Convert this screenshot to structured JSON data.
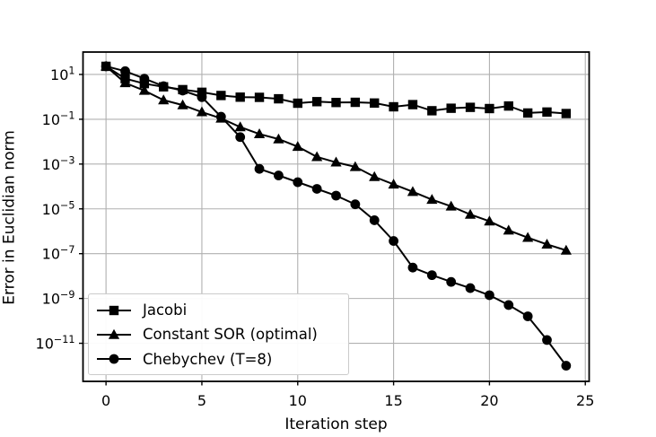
{
  "chart_data": {
    "type": "line",
    "title": "",
    "xlabel": "Iteration step",
    "ylabel": "Error in Euclidian norm",
    "x_scale": "linear",
    "y_scale": "log",
    "xlim": [
      -1.2,
      25.2
    ],
    "ylim_log10": [
      -12.7,
      2
    ],
    "xticks": [
      0,
      5,
      10,
      15,
      20,
      25
    ],
    "ytick_exponents": [
      1,
      -1,
      -3,
      -5,
      -7,
      -9,
      -11
    ],
    "grid": true,
    "grid_color": "#b0b0b0",
    "line_color": "#000000",
    "legend_position": "lower-left",
    "x": [
      0,
      1,
      2,
      3,
      4,
      5,
      6,
      7,
      8,
      9,
      10,
      11,
      12,
      13,
      14,
      15,
      16,
      17,
      18,
      19,
      20,
      21,
      22,
      23,
      24
    ],
    "series": [
      {
        "name": "Jacobi",
        "marker": "square",
        "values": [
          23,
          6.5,
          3.9,
          2.8,
          2.1,
          1.6,
          1.15,
          0.97,
          0.95,
          0.82,
          0.52,
          0.61,
          0.56,
          0.57,
          0.53,
          0.36,
          0.45,
          0.24,
          0.31,
          0.34,
          0.3,
          0.39,
          0.19,
          0.21,
          0.18
        ]
      },
      {
        "name": "Constant SOR (optimal)",
        "marker": "triangle-up",
        "values": [
          23,
          4.2,
          1.9,
          0.72,
          0.43,
          0.21,
          0.11,
          0.045,
          0.022,
          0.013,
          0.006,
          0.0021,
          0.0012,
          0.00075,
          0.00027,
          0.000125,
          5.8e-05,
          2.6e-05,
          1.3e-05,
          5.6e-06,
          2.8e-06,
          1.1e-06,
          5.2e-07,
          2.6e-07,
          1.4e-07
        ]
      },
      {
        "name": "Chebychev (T=8)",
        "marker": "circle",
        "values": [
          23,
          14,
          6.5,
          3.0,
          1.9,
          0.97,
          0.13,
          0.016,
          0.00061,
          0.00031,
          0.000155,
          7.8e-05,
          3.9e-05,
          1.6e-05,
          3.1e-06,
          3.7e-07,
          2.4e-08,
          1.1e-08,
          5.5e-09,
          2.9e-09,
          1.4e-09,
          5.1e-10,
          1.6e-10,
          1.4e-11,
          1e-12
        ]
      }
    ]
  }
}
